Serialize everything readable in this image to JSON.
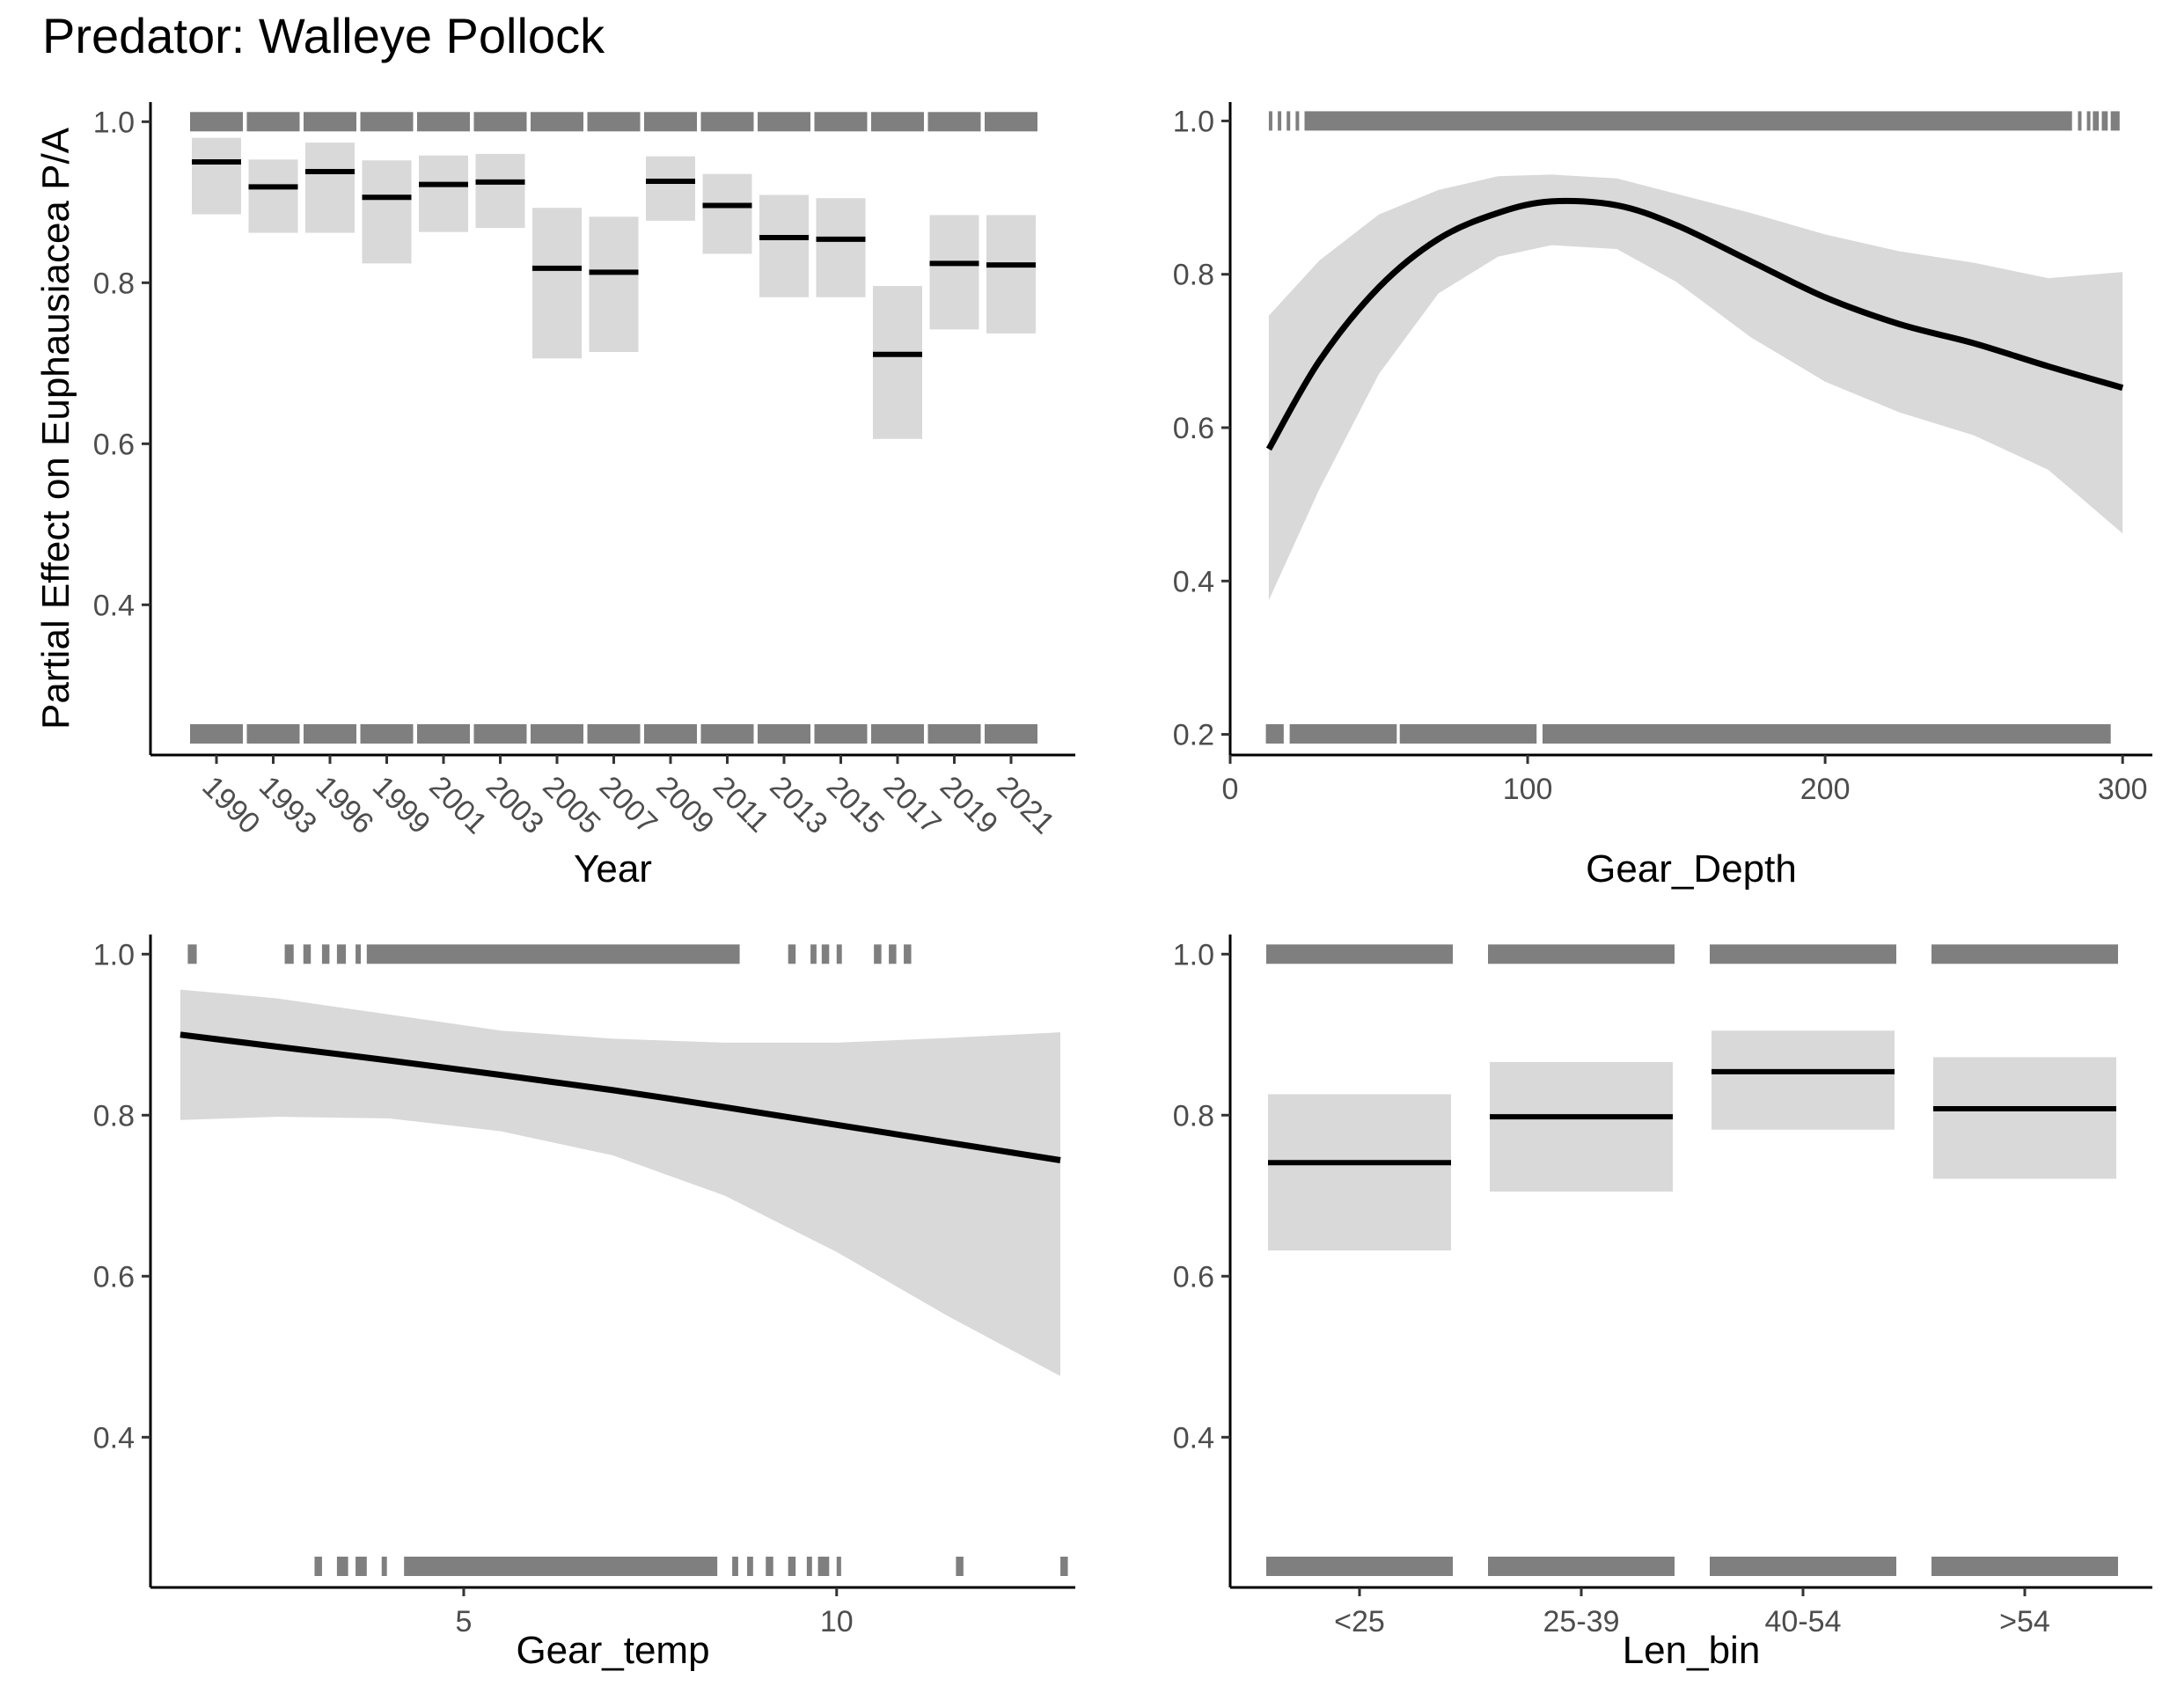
{
  "figure": {
    "title": "Predator: Walleye Pollock"
  },
  "chart_data": [
    {
      "type": "bar",
      "panel": "top-left",
      "xlabel": "Year",
      "ylabel": "Partial Effect on Euphausiacea P/A",
      "ylim": [
        0.22,
        1.02
      ],
      "yticks": [
        "0.4",
        "0.6",
        "0.8",
        "1.0"
      ],
      "ytick_values": [
        0.4,
        0.6,
        0.8,
        1.0
      ],
      "xtick_label_angle": 45,
      "categories": [
        "1990",
        "1993",
        "1996",
        "1999",
        "2001",
        "2003",
        "2005",
        "2007",
        "2009",
        "2011",
        "2013",
        "2015",
        "2017",
        "2019",
        "2021"
      ],
      "estimates": [
        0.95,
        0.919,
        0.938,
        0.906,
        0.922,
        0.925,
        0.818,
        0.813,
        0.926,
        0.896,
        0.856,
        0.854,
        0.711,
        0.824,
        0.822
      ],
      "lower": [
        0.885,
        0.862,
        0.862,
        0.824,
        0.863,
        0.868,
        0.706,
        0.714,
        0.877,
        0.836,
        0.782,
        0.782,
        0.606,
        0.742,
        0.737
      ],
      "upper": [
        0.98,
        0.953,
        0.974,
        0.952,
        0.958,
        0.96,
        0.893,
        0.882,
        0.957,
        0.935,
        0.909,
        0.905,
        0.796,
        0.884,
        0.884
      ],
      "rug_top_fraction": 1,
      "rug_bottom_fraction": 1,
      "rug_style": "grey bands per category at y=0 and y=1"
    },
    {
      "type": "line",
      "panel": "top-right",
      "xlabel": "Gear_Depth",
      "ylabel": "",
      "xlim": [
        0,
        310
      ],
      "ylim": [
        0.18,
        1.02
      ],
      "xticks": [
        "0",
        "100",
        "200",
        "300"
      ],
      "xtick_values": [
        0,
        100,
        200,
        300
      ],
      "yticks": [
        "0.2",
        "0.4",
        "0.6",
        "0.8",
        "1.0"
      ],
      "ytick_values": [
        0.2,
        0.4,
        0.6,
        0.8,
        1.0
      ],
      "x": [
        13,
        30,
        50,
        70,
        90,
        108,
        130,
        150,
        175,
        200,
        225,
        250,
        275,
        300
      ],
      "y": [
        0.572,
        0.687,
        0.783,
        0.846,
        0.88,
        0.895,
        0.89,
        0.864,
        0.817,
        0.77,
        0.735,
        0.71,
        0.68,
        0.652
      ],
      "lower": [
        0.375,
        0.52,
        0.67,
        0.775,
        0.823,
        0.838,
        0.833,
        0.79,
        0.718,
        0.66,
        0.62,
        0.59,
        0.545,
        0.462
      ],
      "upper": [
        0.746,
        0.818,
        0.878,
        0.91,
        0.928,
        0.93,
        0.925,
        0.905,
        0.88,
        0.852,
        0.83,
        0.815,
        0.795,
        0.803
      ],
      "rug_top_fraction": 1,
      "rug_bottom_fraction": 1,
      "rug_top": [
        [
          13,
          14
        ],
        [
          16,
          17
        ],
        [
          19,
          20
        ],
        [
          22,
          23
        ],
        [
          25,
          283
        ],
        [
          285,
          286
        ],
        [
          288,
          289
        ],
        [
          290,
          292
        ],
        [
          293,
          295
        ],
        [
          296,
          299
        ]
      ],
      "rug_bottom": [
        [
          12,
          18
        ],
        [
          20,
          56
        ],
        [
          57,
          103
        ],
        [
          105,
          296
        ]
      ]
    },
    {
      "type": "line",
      "panel": "bottom-left",
      "xlabel": "Gear_temp",
      "ylabel": "",
      "xlim": [
        0.8,
        13.2
      ],
      "ylim": [
        0.22,
        1.02
      ],
      "xticks": [
        "5",
        "10"
      ],
      "xtick_values": [
        5,
        10
      ],
      "yticks": [
        "0.4",
        "0.6",
        "0.8",
        "1.0"
      ],
      "ytick_values": [
        0.4,
        0.6,
        0.8,
        1.0
      ],
      "x": [
        1.2,
        2.5,
        4.0,
        5.5,
        7.0,
        8.5,
        10.0,
        11.5,
        13.0
      ],
      "y": [
        0.9,
        0.885,
        0.868,
        0.85,
        0.831,
        0.81,
        0.788,
        0.766,
        0.744
      ],
      "lower": [
        0.794,
        0.798,
        0.796,
        0.78,
        0.75,
        0.7,
        0.63,
        0.55,
        0.476
      ],
      "upper": [
        0.956,
        0.945,
        0.925,
        0.905,
        0.895,
        0.89,
        0.89,
        0.896,
        0.903
      ],
      "rug_top_fraction": 1,
      "rug_bottom_fraction": 1,
      "rug_top": [
        [
          1.3,
          1.42
        ],
        [
          2.6,
          2.72
        ],
        [
          2.85,
          2.95
        ],
        [
          3.1,
          3.2
        ],
        [
          3.3,
          3.42
        ],
        [
          3.55,
          3.62
        ],
        [
          3.7,
          8.7
        ],
        [
          9.35,
          9.45
        ],
        [
          9.65,
          9.73
        ],
        [
          9.8,
          9.9
        ],
        [
          10.0,
          10.07
        ],
        [
          10.5,
          10.6
        ],
        [
          10.7,
          10.8
        ],
        [
          10.9,
          11.0
        ]
      ],
      "rug_bottom": [
        [
          3.0,
          3.1
        ],
        [
          3.3,
          3.45
        ],
        [
          3.55,
          3.7
        ],
        [
          3.9,
          3.97
        ],
        [
          4.2,
          8.4
        ],
        [
          8.6,
          8.68
        ],
        [
          8.8,
          8.88
        ],
        [
          9.05,
          9.15
        ],
        [
          9.35,
          9.45
        ],
        [
          9.6,
          9.67
        ],
        [
          9.75,
          9.9
        ],
        [
          10.0,
          10.06
        ],
        [
          11.6,
          11.7
        ],
        [
          13.0,
          13.1
        ]
      ]
    },
    {
      "type": "bar",
      "panel": "bottom-right",
      "xlabel": "Len_bin",
      "ylabel": "",
      "ylim": [
        0.22,
        1.02
      ],
      "yticks": [
        "0.4",
        "0.6",
        "0.8",
        "1.0"
      ],
      "ytick_values": [
        0.4,
        0.6,
        0.8,
        1.0
      ],
      "categories": [
        "<25",
        "25-39",
        "40-54",
        ">54"
      ],
      "estimates": [
        0.741,
        0.798,
        0.854,
        0.808
      ],
      "lower": [
        0.632,
        0.705,
        0.782,
        0.721
      ],
      "upper": [
        0.826,
        0.866,
        0.905,
        0.872
      ],
      "rug_top_fraction": 1,
      "rug_bottom_fraction": 1,
      "rug_bottom_gaps": [
        [
          0.14,
          0.15
        ],
        [
          0.64,
          0.66
        ],
        [
          0.82,
          0.86
        ]
      ]
    }
  ]
}
